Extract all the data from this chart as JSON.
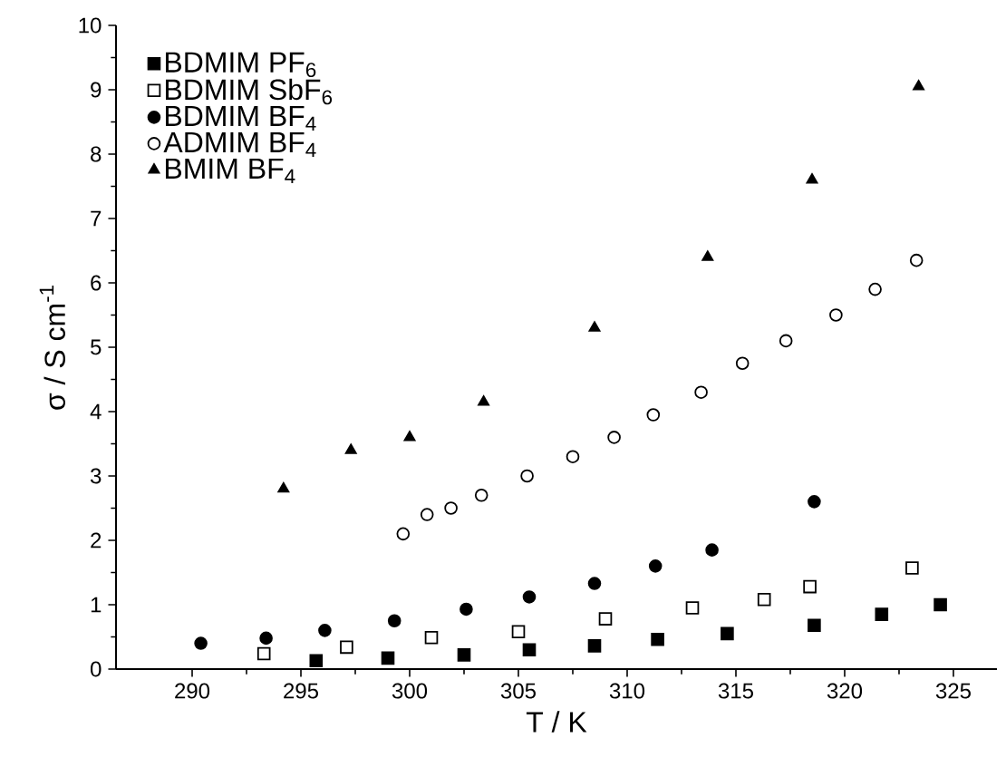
{
  "chart_data": {
    "type": "scatter",
    "xlabel": "T / K",
    "ylabel": "σ / S cm$^{-1}$",
    "xlim": [
      286.5,
      327
    ],
    "ylim": [
      0,
      10
    ],
    "xticks": [
      290,
      295,
      300,
      305,
      310,
      315,
      320,
      325
    ],
    "yticks": [
      0,
      1,
      2,
      3,
      4,
      5,
      6,
      7,
      8,
      9,
      10
    ],
    "legend": "top left",
    "grid": false,
    "series": [
      {
        "name": "BDMIM PF$_{6}$",
        "color": "#000000",
        "marker": "square",
        "x": [
          295.7,
          299,
          302.5,
          305.5,
          308.5,
          311.4,
          314.6,
          318.6,
          321.7,
          324.4
        ],
        "values": [
          0.13,
          0.17,
          0.22,
          0.3,
          0.36,
          0.46,
          0.55,
          0.68,
          0.85,
          1.0
        ]
      },
      {
        "name": "BDMIM SbF$_{6}$",
        "color": "#ffffff",
        "marker": "square",
        "x": [
          293.3,
          297.1,
          301,
          305,
          309,
          313,
          316.3,
          318.4,
          323.1
        ],
        "values": [
          0.24,
          0.34,
          0.49,
          0.58,
          0.78,
          0.95,
          1.08,
          1.28,
          1.57
        ]
      },
      {
        "name": "BDMIM BF$_{4}$",
        "color": "#000000",
        "marker": "circle",
        "x": [
          290.4,
          293.4,
          296.1,
          299.3,
          302.6,
          305.5,
          308.5,
          311.3,
          313.9,
          318.6
        ],
        "values": [
          0.4,
          0.48,
          0.6,
          0.75,
          0.93,
          1.12,
          1.33,
          1.6,
          1.85,
          2.6
        ]
      },
      {
        "name": "ADMIM BF$_{4}$",
        "color": "#ffffff",
        "marker": "circle",
        "x": [
          299.7,
          300.8,
          301.9,
          303.3,
          305.4,
          307.5,
          309.4,
          311.2,
          313.4,
          315.3,
          317.3,
          319.6,
          321.4,
          323.3
        ],
        "values": [
          2.1,
          2.4,
          2.5,
          2.7,
          3.0,
          3.3,
          3.6,
          3.95,
          4.3,
          4.75,
          5.1,
          5.5,
          5.9,
          6.35
        ]
      },
      {
        "name": "BMIM BF$_{4}$",
        "color": "#000000",
        "marker": "triangle",
        "x": [
          294.2,
          297.3,
          300.0,
          303.4,
          308.5,
          313.7,
          318.5,
          323.4
        ],
        "values": [
          2.8,
          3.4,
          3.6,
          4.15,
          5.3,
          6.4,
          7.6,
          9.05
        ]
      }
    ]
  }
}
